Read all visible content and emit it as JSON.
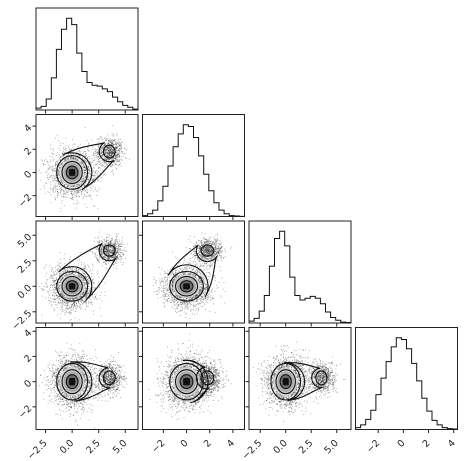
{
  "chart_data": {
    "type": "corner",
    "variables": [
      "",
      "",
      "",
      ""
    ],
    "axes": [
      {
        "ticks": [
          -2.5,
          0.0,
          2.5,
          5.0
        ],
        "tick_labels": [
          "−2.5",
          "0.0",
          "2.5",
          "5.0"
        ],
        "range": [
          -3.4,
          6.2
        ]
      },
      {
        "ticks": [
          -2,
          0,
          2,
          4
        ],
        "tick_labels": [
          "−2",
          "0",
          "2",
          "4"
        ],
        "range": [
          -3.8,
          5.0
        ]
      },
      {
        "ticks": [
          -2.5,
          0.0,
          2.5,
          5.0
        ],
        "tick_labels": [
          "−2.5",
          "0.0",
          "2.5",
          "5.0"
        ],
        "range": [
          -3.6,
          6.4
        ]
      },
      {
        "ticks": [
          -2,
          0,
          2,
          4
        ],
        "tick_labels": [
          "−2",
          "0",
          "2",
          "4"
        ],
        "range": [
          -3.8,
          4.3
        ]
      }
    ],
    "marginals": [
      {
        "bins": [
          -3.4,
          -2.92,
          -2.44,
          -1.96,
          -1.48,
          -1.0,
          -0.52,
          -0.04,
          0.44,
          0.92,
          1.4,
          1.88,
          2.36,
          2.84,
          3.32,
          3.8,
          4.28,
          4.76,
          5.24,
          5.72,
          6.2
        ],
        "counts": [
          0.02,
          0.04,
          0.12,
          0.35,
          0.66,
          0.88,
          1.0,
          0.93,
          0.62,
          0.42,
          0.3,
          0.27,
          0.26,
          0.23,
          0.2,
          0.14,
          0.09,
          0.05,
          0.03,
          0.01
        ]
      },
      {
        "bins": [
          -3.8,
          -3.36,
          -2.92,
          -2.48,
          -2.04,
          -1.6,
          -1.16,
          -0.72,
          -0.28,
          0.16,
          0.6,
          1.04,
          1.48,
          1.92,
          2.36,
          2.8,
          3.24,
          3.68,
          4.12,
          4.56,
          5.0
        ],
        "counts": [
          0.01,
          0.03,
          0.07,
          0.17,
          0.33,
          0.55,
          0.76,
          0.9,
          1.0,
          0.98,
          0.86,
          0.66,
          0.46,
          0.28,
          0.15,
          0.07,
          0.03,
          0.01,
          0.005,
          0.002
        ]
      },
      {
        "bins": [
          -3.6,
          -3.1,
          -2.6,
          -2.1,
          -1.6,
          -1.1,
          -0.6,
          -0.1,
          0.4,
          0.9,
          1.4,
          1.9,
          2.4,
          2.9,
          3.4,
          3.9,
          4.4,
          4.9,
          5.4,
          5.9,
          6.4
        ],
        "counts": [
          0.02,
          0.05,
          0.13,
          0.3,
          0.62,
          0.92,
          1.0,
          0.84,
          0.5,
          0.3,
          0.25,
          0.27,
          0.29,
          0.27,
          0.21,
          0.12,
          0.06,
          0.03,
          0.01,
          0.005
        ]
      },
      {
        "bins": [
          -3.8,
          -3.395,
          -2.99,
          -2.585,
          -2.18,
          -1.775,
          -1.37,
          -0.965,
          -0.56,
          -0.155,
          0.25,
          0.655,
          1.06,
          1.465,
          1.87,
          2.275,
          2.68,
          3.085,
          3.49,
          3.895,
          4.3
        ],
        "counts": [
          0.02,
          0.05,
          0.11,
          0.21,
          0.38,
          0.56,
          0.74,
          0.9,
          1.0,
          0.98,
          0.88,
          0.72,
          0.53,
          0.34,
          0.2,
          0.1,
          0.05,
          0.02,
          0.01,
          0.005
        ]
      }
    ],
    "pairs": [
      {
        "row": 1,
        "col": 0,
        "components": [
          {
            "mean": [
              0,
              0
            ],
            "sd": [
              1,
              1
            ],
            "weight": 0.72
          },
          {
            "mean": [
              3.5,
              1.8
            ],
            "sd": [
              0.6,
              0.6
            ],
            "weight": 0.28
          }
        ]
      },
      {
        "row": 2,
        "col": 0,
        "components": [
          {
            "mean": [
              0,
              0
            ],
            "sd": [
              1,
              1
            ],
            "weight": 0.72
          },
          {
            "mean": [
              3.5,
              3.5
            ],
            "sd": [
              0.6,
              0.6
            ],
            "weight": 0.28
          }
        ]
      },
      {
        "row": 2,
        "col": 1,
        "components": [
          {
            "mean": [
              0,
              0
            ],
            "sd": [
              1,
              1
            ],
            "weight": 0.72
          },
          {
            "mean": [
              1.8,
              3.5
            ],
            "sd": [
              0.6,
              0.6
            ],
            "weight": 0.28
          }
        ]
      },
      {
        "row": 3,
        "col": 0,
        "components": [
          {
            "mean": [
              0,
              0
            ],
            "sd": [
              1,
              1
            ],
            "weight": 0.72
          },
          {
            "mean": [
              3.5,
              0.3
            ],
            "sd": [
              0.6,
              0.6
            ],
            "weight": 0.28
          }
        ]
      },
      {
        "row": 3,
        "col": 1,
        "components": [
          {
            "mean": [
              0,
              0
            ],
            "sd": [
              1,
              1
            ],
            "weight": 0.72
          },
          {
            "mean": [
              1.8,
              0.3
            ],
            "sd": [
              0.6,
              0.6
            ],
            "weight": 0.28
          }
        ]
      },
      {
        "row": 3,
        "col": 2,
        "components": [
          {
            "mean": [
              0,
              0
            ],
            "sd": [
              1,
              1
            ],
            "weight": 0.72
          },
          {
            "mean": [
              3.5,
              0.3
            ],
            "sd": [
              0.6,
              0.6
            ],
            "weight": 0.28
          }
        ]
      }
    ],
    "grid": false,
    "legend": "none"
  }
}
